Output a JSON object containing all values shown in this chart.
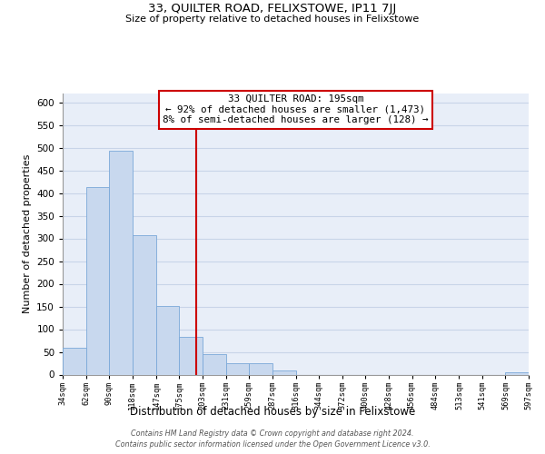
{
  "title_line1": "33, QUILTER ROAD, FELIXSTOWE, IP11 7JJ",
  "title_line2": "Size of property relative to detached houses in Felixstowe",
  "xlabel": "Distribution of detached houses by size in Felixstowe",
  "ylabel": "Number of detached properties",
  "bar_edges": [
    34,
    62,
    90,
    118,
    147,
    175,
    203,
    231,
    259,
    287,
    316,
    344,
    372,
    400,
    428,
    456,
    484,
    513,
    541,
    569,
    597
  ],
  "bar_heights": [
    60,
    413,
    493,
    308,
    152,
    84,
    46,
    26,
    26,
    10,
    0,
    0,
    0,
    0,
    0,
    0,
    0,
    0,
    0,
    5
  ],
  "bar_color": "#c8d8ee",
  "bar_edge_color": "#7aA8d8",
  "vline_x": 195,
  "vline_color": "#cc0000",
  "ylim": [
    0,
    620
  ],
  "yticks": [
    0,
    50,
    100,
    150,
    200,
    250,
    300,
    350,
    400,
    450,
    500,
    550,
    600
  ],
  "xtick_labels": [
    "34sqm",
    "62sqm",
    "90sqm",
    "118sqm",
    "147sqm",
    "175sqm",
    "203sqm",
    "231sqm",
    "259sqm",
    "287sqm",
    "316sqm",
    "344sqm",
    "372sqm",
    "400sqm",
    "428sqm",
    "456sqm",
    "484sqm",
    "513sqm",
    "541sqm",
    "569sqm",
    "597sqm"
  ],
  "annotation_title": "33 QUILTER ROAD: 195sqm",
  "annotation_line1": "← 92% of detached houses are smaller (1,473)",
  "annotation_line2": "8% of semi-detached houses are larger (128) →",
  "footer_line1": "Contains HM Land Registry data © Crown copyright and database right 2024.",
  "footer_line2": "Contains public sector information licensed under the Open Government Licence v3.0.",
  "grid_color": "#c8d4e8",
  "background_color": "#e8eef8"
}
